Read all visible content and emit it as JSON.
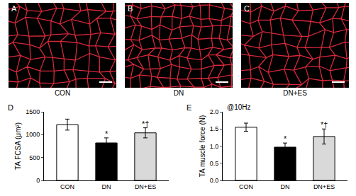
{
  "panels": [
    {
      "letter": "A",
      "label": "CON"
    },
    {
      "letter": "B",
      "label": "DN"
    },
    {
      "letter": "C",
      "label": "DN+ES"
    }
  ],
  "chart_data": [
    {
      "type": "bar",
      "panel": "D",
      "y_label": "TA FCSA (μm²)",
      "categories": [
        "CON",
        "DN",
        "DN+ES"
      ],
      "values": [
        1220,
        820,
        1040
      ],
      "errors": [
        120,
        110,
        110
      ],
      "colors": [
        "#ffffff",
        "#000000",
        "#d9d9d9"
      ],
      "ylim": [
        0,
        1500
      ],
      "yticks": [
        0,
        500,
        1000,
        1500
      ],
      "annotations": [
        {
          "category": "DN",
          "text": "*"
        },
        {
          "category": "DN+ES",
          "text": "*†"
        }
      ]
    },
    {
      "type": "bar",
      "panel": "E",
      "y_label": "TA muscle force (N)",
      "subtitle": "@10Hz",
      "categories": [
        "CON",
        "DN",
        "DN+ES"
      ],
      "values": [
        1.55,
        0.97,
        1.28
      ],
      "errors": [
        0.12,
        0.12,
        0.22
      ],
      "colors": [
        "#ffffff",
        "#000000",
        "#d9d9d9"
      ],
      "ylim": [
        0,
        2
      ],
      "yticks": [
        {
          "value": 0,
          "label": "0.0"
        },
        {
          "value": 0.5,
          "label": "0.5"
        },
        {
          "value": 1,
          "label": "1.0"
        },
        {
          "value": 1.5,
          "label": "1.5"
        },
        {
          "value": 2,
          "label": "2.0"
        }
      ],
      "annotations": [
        {
          "category": "DN",
          "text": "*"
        },
        {
          "category": "DN+ES",
          "text": "*†"
        }
      ]
    }
  ]
}
